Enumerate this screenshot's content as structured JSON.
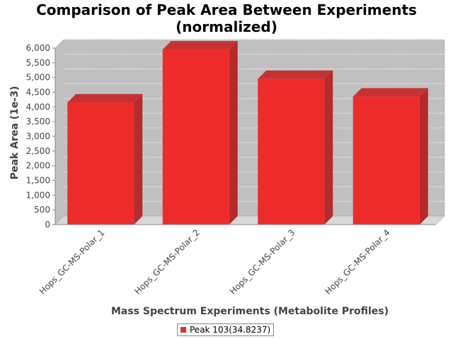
{
  "chart_data": {
    "type": "bar",
    "title_lines": [
      "Comparison of Peak Area Between Experiments",
      "(normalized)"
    ],
    "xlabel": "Mass Spectrum Experiments (Metabolite Profiles)",
    "ylabel": "Peak Area (1e-3)",
    "categories": [
      "Hops_GC-MS-Polar_1",
      "Hops_GC-MS-Polar_2",
      "Hops_GC-MS-Polar_3",
      "Hops_GC-MS-Polar_4"
    ],
    "series": [
      {
        "name": "Peak 103(34.8237)",
        "values": [
          4150,
          5950,
          4950,
          4350
        ],
        "color": "#ee2b2b"
      }
    ],
    "ylim": [
      0,
      6000
    ],
    "yticks": [
      0,
      500,
      1000,
      1500,
      2000,
      2500,
      3000,
      3500,
      4000,
      4500,
      5000,
      5500,
      6000
    ],
    "ytick_labels": [
      "0",
      "500",
      "1,000",
      "1,500",
      "2,000",
      "2,500",
      "3,000",
      "3,500",
      "4,000",
      "4,500",
      "5,000",
      "5,500",
      "6,000"
    ],
    "grid": true,
    "legend_position": "bottom",
    "colors": {
      "plot_background": "#c0c0c0",
      "floor": "#d8d8d8",
      "bar_side": "#b52a2a",
      "bar_top": "#c63232"
    }
  }
}
